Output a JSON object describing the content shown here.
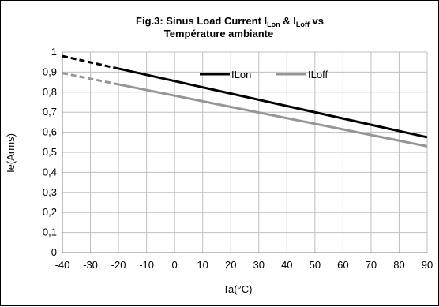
{
  "chart_data": {
    "type": "line",
    "title": "Fig.3:  Sinus Load Current ILon & ILoff vs",
    "title_parts": [
      {
        "text": "Fig.3:  Sinus Load Current I",
        "sub": false
      },
      {
        "text": "Lon",
        "sub": true
      },
      {
        "text": " & I",
        "sub": false
      },
      {
        "text": "Loff",
        "sub": true
      },
      {
        "text": " vs",
        "sub": false
      }
    ],
    "subtitle": "Température ambiante",
    "xlabel": "Ta(°C)",
    "ylabel": "Ie(Arms)",
    "xlim": [
      -40,
      90
    ],
    "ylim": [
      0,
      1
    ],
    "xticks": [
      "-40",
      "-30",
      "-20",
      "-10",
      "0",
      "10",
      "20",
      "30",
      "40",
      "50",
      "60",
      "70",
      "80",
      "90"
    ],
    "yticks": [
      "0",
      "0,1",
      "0,2",
      "0,3",
      "0,4",
      "0,5",
      "0,6",
      "0,7",
      "0,8",
      "0,9",
      "1"
    ],
    "grid": true,
    "legend_position": "top-right",
    "series": [
      {
        "name": "ILon",
        "color": "#000000",
        "x": [
          -40,
          90
        ],
        "y": [
          0.98,
          0.575
        ],
        "dashed_until_x": -20
      },
      {
        "name": "ILoff",
        "color": "#969696",
        "x": [
          -40,
          90
        ],
        "y": [
          0.895,
          0.53
        ],
        "dashed_until_x": -20
      }
    ],
    "colors": {
      "grid": "#bfbfbf",
      "axis": "#808080"
    }
  }
}
